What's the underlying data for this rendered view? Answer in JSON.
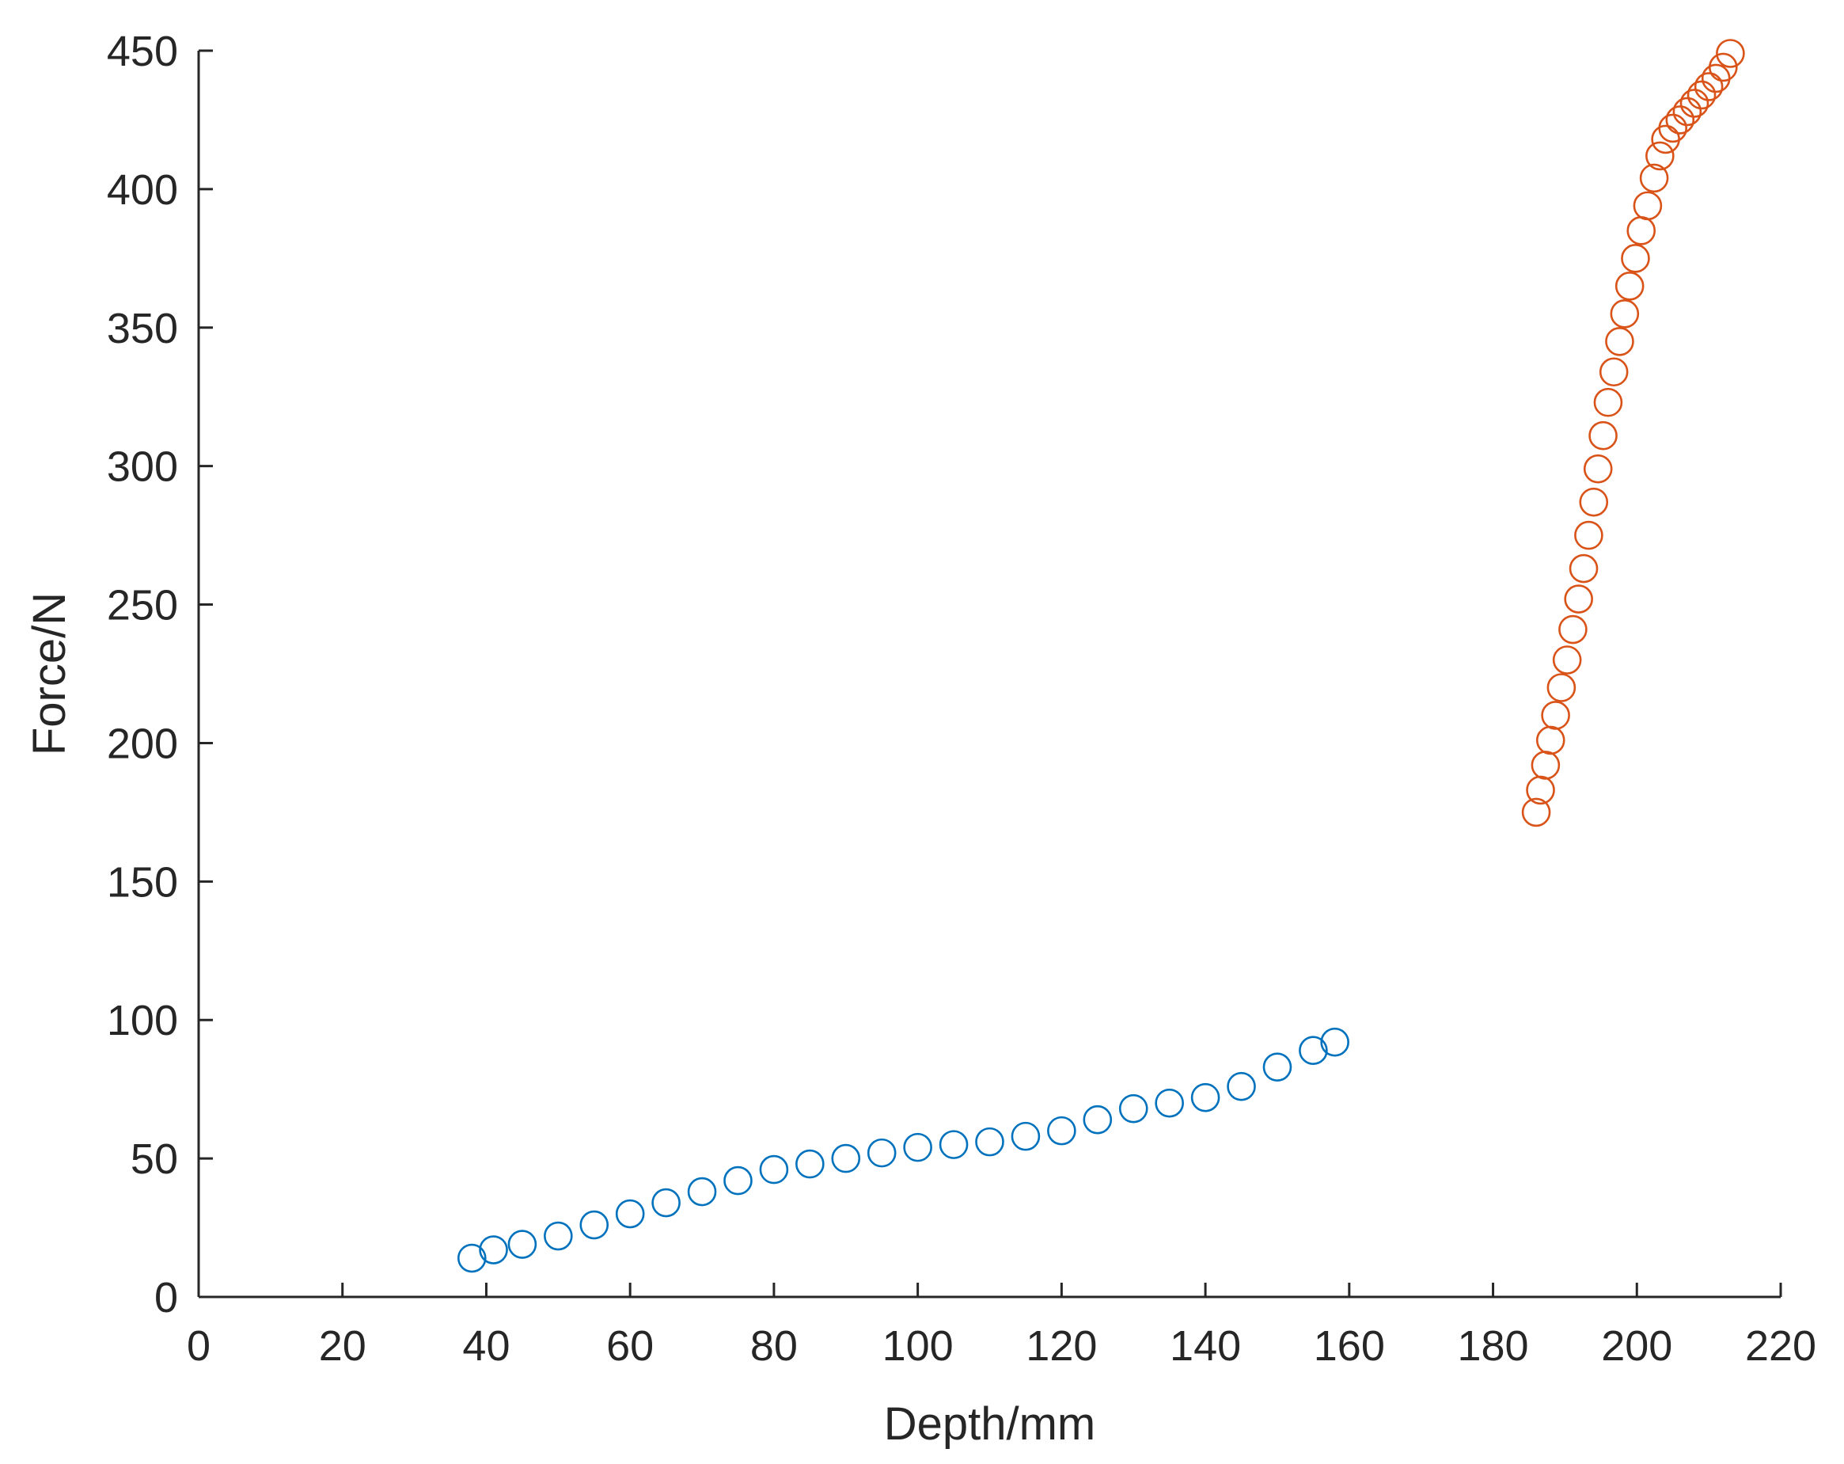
{
  "chart_data": {
    "type": "scatter",
    "xlabel": "Depth/mm",
    "ylabel": "Force/N",
    "xlim": [
      0,
      220
    ],
    "ylim": [
      0,
      450
    ],
    "xticks": [
      0,
      20,
      40,
      60,
      80,
      100,
      120,
      140,
      160,
      180,
      200,
      220
    ],
    "yticks": [
      0,
      50,
      100,
      150,
      200,
      250,
      300,
      350,
      400,
      450
    ],
    "grid": false,
    "marker": "open-circle",
    "series": [
      {
        "color": "#0072BD",
        "x": [
          38,
          41,
          45,
          50,
          55,
          60,
          65,
          70,
          75,
          80,
          85,
          90,
          95,
          100,
          105,
          110,
          115,
          120,
          125,
          130,
          135,
          140,
          145,
          150,
          155,
          158
        ],
        "y": [
          14,
          17,
          19,
          22,
          26,
          30,
          34,
          38,
          42,
          46,
          48,
          50,
          52,
          54,
          55,
          56,
          58,
          60,
          64,
          68,
          70,
          72,
          76,
          83,
          89,
          92
        ]
      },
      {
        "color": "#D95319",
        "x": [
          186,
          186.6,
          187.3,
          188,
          188.7,
          189.5,
          190.3,
          191.1,
          191.9,
          192.6,
          193.3,
          194,
          194.6,
          195.3,
          196,
          196.8,
          197.6,
          198.3,
          199,
          199.8,
          200.6,
          201.5,
          202.4,
          203.2,
          204,
          205,
          206,
          207,
          208,
          209,
          210,
          211,
          212,
          213
        ],
        "y": [
          175,
          183,
          192,
          201,
          210,
          220,
          230,
          241,
          252,
          263,
          275,
          287,
          299,
          311,
          323,
          334,
          345,
          355,
          365,
          375,
          385,
          394,
          404,
          412,
          418,
          422,
          425,
          428,
          431,
          434,
          437,
          440,
          444,
          449
        ]
      }
    ]
  }
}
